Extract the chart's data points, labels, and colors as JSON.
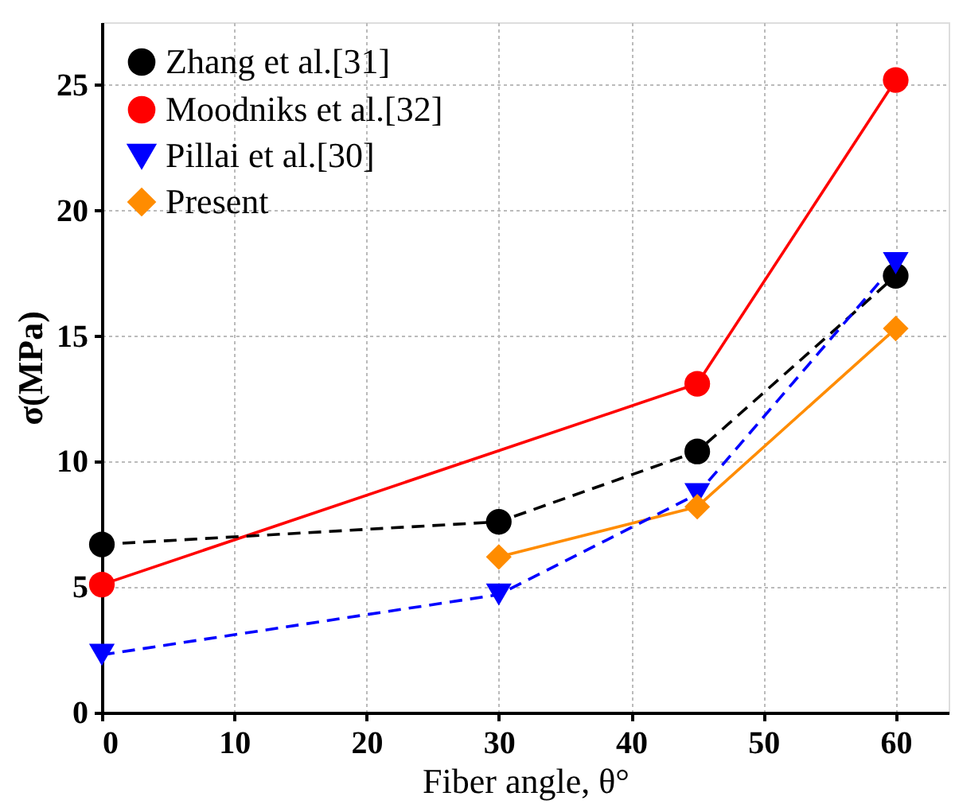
{
  "chart_data": {
    "type": "line",
    "xlabel": "Fiber angle, θ°",
    "ylabel": "σ(MPa)",
    "xlim": [
      0,
      64
    ],
    "ylim": [
      0,
      27.5
    ],
    "xticks": [
      0,
      10,
      20,
      30,
      40,
      50,
      60
    ],
    "yticks": [
      0,
      5,
      10,
      15,
      20,
      25
    ],
    "grid": true,
    "legend": "top left",
    "series": [
      {
        "name": "Zhang et al.[31]",
        "color": "#000000",
        "line_style": "dashed",
        "marker": "circle",
        "x": [
          0,
          30,
          45,
          60
        ],
        "values": [
          6.7,
          7.6,
          10.4,
          17.4
        ]
      },
      {
        "name": "Moodniks et al.[32]",
        "color": "#ff0000",
        "line_style": "solid",
        "marker": "circle",
        "x": [
          0,
          45,
          60
        ],
        "values": [
          5.1,
          13.1,
          25.2
        ]
      },
      {
        "name": "Pillai et al.[30]",
        "color": "#0000ff",
        "line_style": "dashed",
        "marker": "triangle",
        "x": [
          0,
          30,
          45,
          60
        ],
        "values": [
          2.3,
          4.7,
          8.7,
          17.9
        ]
      },
      {
        "name": "Present",
        "color": "#ff8c00",
        "line_style": "solid",
        "marker": "diamond",
        "x": [
          30,
          45,
          60
        ],
        "values": [
          6.2,
          8.2,
          15.3
        ]
      }
    ]
  }
}
